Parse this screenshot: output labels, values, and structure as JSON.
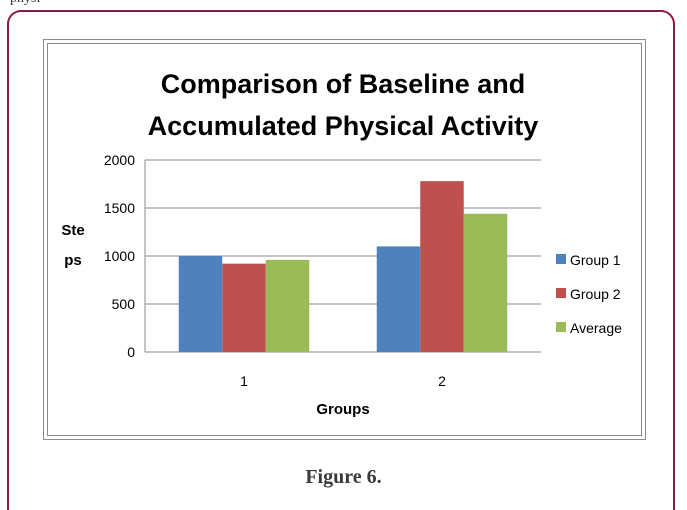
{
  "page": {
    "top_text": "physi",
    "caption": "Figure 6."
  },
  "chart_data": {
    "type": "bar",
    "title": "Comparison of Baseline and Accumulated Physical Activity",
    "title_lines": [
      "Comparison of Baseline and",
      "Accumulated Physical Activity"
    ],
    "xlabel": "Groups",
    "ylabel": "Steps",
    "ylabel_lines": [
      "Ste",
      "ps"
    ],
    "categories": [
      "1",
      "2"
    ],
    "series": [
      {
        "name": "Group 1",
        "values": [
          1000,
          1100
        ],
        "color": "#4f81bd"
      },
      {
        "name": "Group 2",
        "values": [
          920,
          1780
        ],
        "color": "#c0504d"
      },
      {
        "name": "Average",
        "values": [
          960,
          1440
        ],
        "color": "#9bbb59"
      }
    ],
    "ylim": [
      0,
      2000
    ],
    "yticks": [
      0,
      500,
      1000,
      1500,
      2000
    ],
    "grid": true,
    "legend": "right"
  }
}
